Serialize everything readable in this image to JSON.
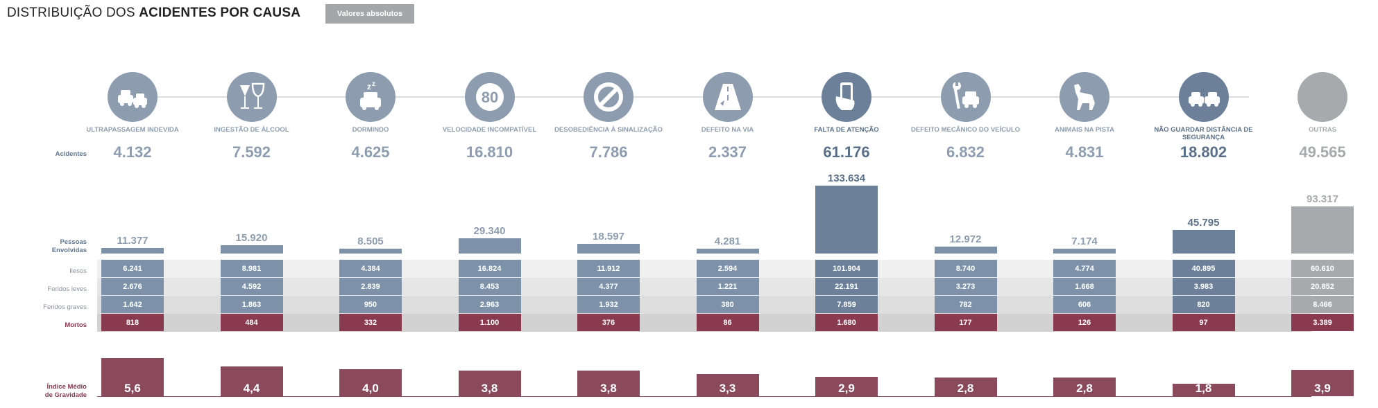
{
  "header": {
    "title_regular": "DISTRIBUIÇÃO DOS",
    "title_bold": "ACIDENTES POR CAUSA",
    "toggle_label": "Valores absolutos"
  },
  "row_labels": {
    "acidentes": "Acidentes",
    "pessoas": "Pessoas Envolvidas",
    "ilesos": "Ilesos",
    "feridos_leves": "Feridos leves",
    "feridos_graves": "Feridos graves",
    "mortos": "Mortos",
    "indice": "Índice Médio de Gravidade"
  },
  "colors": {
    "slate": "#7d92a9",
    "highlight": "#6c8199",
    "grey": "#a7a9ac",
    "mortos": "#8a3a4e",
    "indice": "#8a4a5c"
  },
  "chart_data": {
    "type": "table",
    "categories": [
      {
        "name": "ULTRAPASSAGEM INDEVIDA",
        "icon": "cars-overtaking-icon",
        "accidents": "4.132",
        "people": "11.377",
        "people_value": 11377,
        "ilesos": "6.241",
        "feridos_leves": "2.676",
        "feridos_graves": "1.642",
        "mortos": "818",
        "indice": "5,6",
        "indice_value": 5.6
      },
      {
        "name": "INGESTÃO DE ÁLCOOL",
        "icon": "wine-glasses-icon",
        "accidents": "7.592",
        "people": "15.920",
        "people_value": 15920,
        "ilesos": "8.981",
        "feridos_leves": "4.592",
        "feridos_graves": "1.863",
        "mortos": "484",
        "indice": "4,4",
        "indice_value": 4.4
      },
      {
        "name": "DORMINDO",
        "icon": "sleeping-car-icon",
        "accidents": "4.625",
        "people": "8.505",
        "people_value": 8505,
        "ilesos": "4.384",
        "feridos_leves": "2.839",
        "feridos_graves": "950",
        "mortos": "332",
        "indice": "4,0",
        "indice_value": 4.0
      },
      {
        "name": "VELOCIDADE INCOMPATÍVEL",
        "icon": "speed-80-icon",
        "accidents": "16.810",
        "people": "29.340",
        "people_value": 29340,
        "ilesos": "16.824",
        "feridos_leves": "8.453",
        "feridos_graves": "2.963",
        "mortos": "1.100",
        "indice": "3,8",
        "indice_value": 3.8
      },
      {
        "name": "DESOBEDIÊNCIA À SINALIZAÇÃO",
        "icon": "prohibited-sign-icon",
        "accidents": "7.786",
        "people": "18.597",
        "people_value": 18597,
        "ilesos": "11.912",
        "feridos_leves": "4.377",
        "feridos_graves": "1.932",
        "mortos": "376",
        "indice": "3,8",
        "indice_value": 3.8
      },
      {
        "name": "DEFEITO NA VIA",
        "icon": "damaged-road-icon",
        "accidents": "2.337",
        "people": "4.281",
        "people_value": 4281,
        "ilesos": "2.594",
        "feridos_leves": "1.221",
        "feridos_graves": "380",
        "mortos": "86",
        "indice": "3,3",
        "indice_value": 3.3
      },
      {
        "name": "FALTA DE ATENÇÃO",
        "icon": "phone-in-hand-icon",
        "accidents": "61.176",
        "people": "133.634",
        "people_value": 133634,
        "ilesos": "101.904",
        "feridos_leves": "22.191",
        "feridos_graves": "7.859",
        "mortos": "1.680",
        "indice": "2,9",
        "indice_value": 2.9,
        "highlight": true
      },
      {
        "name": "DEFEITO MECÂNICO DO VEÍCULO",
        "icon": "wrench-car-icon",
        "accidents": "6.832",
        "people": "12.972",
        "people_value": 12972,
        "ilesos": "8.740",
        "feridos_leves": "3.273",
        "feridos_graves": "782",
        "mortos": "177",
        "indice": "2,8",
        "indice_value": 2.8
      },
      {
        "name": "ANIMAIS NA PISTA",
        "icon": "dog-icon",
        "accidents": "4.831",
        "people": "7.174",
        "people_value": 7174,
        "ilesos": "4.774",
        "feridos_leves": "1.668",
        "feridos_graves": "606",
        "mortos": "126",
        "indice": "2,8",
        "indice_value": 2.8
      },
      {
        "name": "NÃO GUARDAR DISTÂNCIA DE SEGURANÇA",
        "icon": "cars-tailgating-icon",
        "accidents": "18.802",
        "people": "45.795",
        "people_value": 45795,
        "ilesos": "40.895",
        "feridos_leves": "3.983",
        "feridos_graves": "820",
        "mortos": "97",
        "indice": "1,8",
        "indice_value": 1.8,
        "highlight": true
      },
      {
        "name": "OUTRAS",
        "icon": "blank-circle-icon",
        "accidents": "49.565",
        "people": "93.317",
        "people_value": 93317,
        "ilesos": "60.610",
        "feridos_leves": "20.852",
        "feridos_graves": "8.466",
        "mortos": "3.389",
        "indice": "3,9",
        "indice_value": 3.9,
        "grey": true
      }
    ]
  }
}
